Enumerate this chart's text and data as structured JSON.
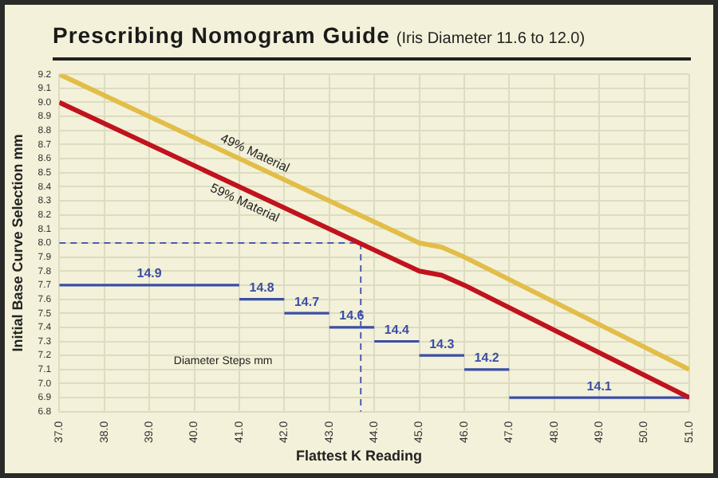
{
  "chart_data": {
    "type": "line",
    "title": "Prescribing Nomogram Guide",
    "subtitle": "(Iris Diameter 11.6 to 12.0)",
    "xlabel": "Flattest K Reading",
    "ylabel": "Initial Base Curve Selection mm",
    "annotations": [
      "Diameter Steps mm"
    ],
    "grid": true,
    "marker": "none",
    "xlim": [
      37,
      51
    ],
    "xticks": [
      {
        "value": 37,
        "label": "37.0"
      },
      {
        "value": 38,
        "label": "38.0"
      },
      {
        "value": 39,
        "label": "39.0"
      },
      {
        "value": 40,
        "label": "40.0"
      },
      {
        "value": 41,
        "label": "41.0"
      },
      {
        "value": 42,
        "label": "42.0"
      },
      {
        "value": 43,
        "label": "43.0"
      },
      {
        "value": 44,
        "label": "44.0"
      },
      {
        "value": 45,
        "label": "45.0"
      },
      {
        "value": 46,
        "label": "46.0"
      },
      {
        "value": 47,
        "label": "47.0"
      },
      {
        "value": 48,
        "label": "48.0"
      },
      {
        "value": 49,
        "label": "49.0"
      },
      {
        "value": 50,
        "label": "50.0"
      },
      {
        "value": 51,
        "label": "51.0"
      }
    ],
    "ylim": [
      6.8,
      9.2
    ],
    "yticks": [
      {
        "value": 6.8,
        "label": "6.8"
      },
      {
        "value": 6.9,
        "label": "6.9"
      },
      {
        "value": 7.0,
        "label": "7.0"
      },
      {
        "value": 7.1,
        "label": "7.1"
      },
      {
        "value": 7.2,
        "label": "7.2"
      },
      {
        "value": 7.3,
        "label": "7.3"
      },
      {
        "value": 7.4,
        "label": "7.4"
      },
      {
        "value": 7.5,
        "label": "7.5"
      },
      {
        "value": 7.6,
        "label": "7.6"
      },
      {
        "value": 7.7,
        "label": "7.7"
      },
      {
        "value": 7.8,
        "label": "7.8"
      },
      {
        "value": 7.9,
        "label": "7.9"
      },
      {
        "value": 8.0,
        "label": "8.0"
      },
      {
        "value": 8.1,
        "label": "8.1"
      },
      {
        "value": 8.2,
        "label": "8.2"
      },
      {
        "value": 8.3,
        "label": "8.3"
      },
      {
        "value": 8.4,
        "label": "8.4"
      },
      {
        "value": 8.5,
        "label": "8.5"
      },
      {
        "value": 8.6,
        "label": "8.6"
      },
      {
        "value": 8.7,
        "label": "8.7"
      },
      {
        "value": 8.8,
        "label": "8.8"
      },
      {
        "value": 8.9,
        "label": "8.9"
      },
      {
        "value": 9.0,
        "label": "9.0"
      },
      {
        "value": 9.1,
        "label": "9.1"
      },
      {
        "value": 9.2,
        "label": "9.2"
      }
    ],
    "series": [
      {
        "name": "49% Material",
        "color": "#e2bd48",
        "x": [
          37,
          45,
          45.5,
          46,
          51
        ],
        "values": [
          9.2,
          8.0,
          7.97,
          7.9,
          7.1
        ]
      },
      {
        "name": "59% Material",
        "color": "#c0131d",
        "x": [
          37,
          45,
          45.5,
          46,
          51
        ],
        "values": [
          9.0,
          7.8,
          7.77,
          7.7,
          6.9
        ]
      },
      {
        "color": "#4a5cae",
        "line_style": "dashed",
        "x": [
          37,
          43.7,
          43.7
        ],
        "values": [
          8.0,
          8.0,
          6.8
        ]
      },
      {
        "name": "14.9",
        "color": "#3b4ea6",
        "x": [
          37,
          41
        ],
        "values": [
          7.7,
          7.7
        ]
      },
      {
        "name": "14.8",
        "color": "#3b4ea6",
        "x": [
          41,
          42
        ],
        "values": [
          7.6,
          7.6
        ]
      },
      {
        "name": "14.7",
        "color": "#3b4ea6",
        "x": [
          42,
          43
        ],
        "values": [
          7.5,
          7.5
        ]
      },
      {
        "name": "14.6",
        "color": "#3b4ea6",
        "x": [
          43,
          44
        ],
        "values": [
          7.4,
          7.4
        ]
      },
      {
        "name": "14.4",
        "color": "#3b4ea6",
        "x": [
          44,
          45
        ],
        "values": [
          7.3,
          7.3
        ]
      },
      {
        "name": "14.3",
        "color": "#3b4ea6",
        "x": [
          45,
          46
        ],
        "values": [
          7.2,
          7.2
        ]
      },
      {
        "name": "14.2",
        "color": "#3b4ea6",
        "x": [
          46,
          47
        ],
        "values": [
          7.1,
          7.1
        ]
      },
      {
        "name": "14.1",
        "color": "#3b4ea6",
        "x": [
          47,
          51
        ],
        "values": [
          6.9,
          6.9
        ]
      }
    ]
  }
}
